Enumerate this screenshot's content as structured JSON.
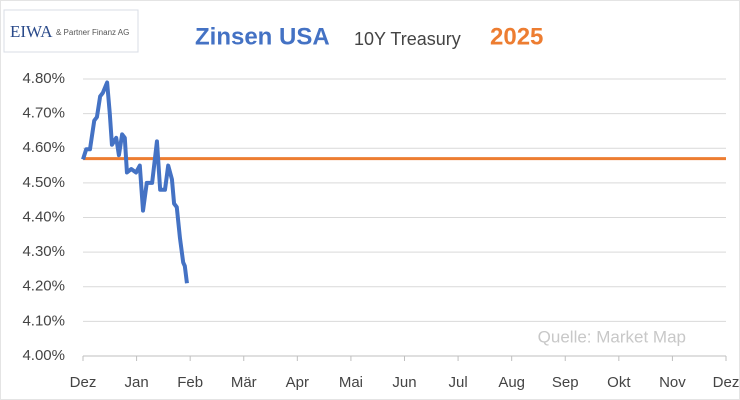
{
  "chart_data": {
    "type": "line",
    "logo": {
      "mark": "EIWA",
      "text": "& Partner Finanz AG"
    },
    "title": "Zinsen USA",
    "subtitle": "10Y Treasury",
    "year": "2025",
    "annotation": "Quelle: Market Map",
    "xlim": [
      0,
      12
    ],
    "xticks": [
      {
        "value": 0,
        "label": "Dez"
      },
      {
        "value": 1,
        "label": "Jan"
      },
      {
        "value": 2,
        "label": "Feb"
      },
      {
        "value": 3,
        "label": "Mär"
      },
      {
        "value": 4,
        "label": "Apr"
      },
      {
        "value": 5,
        "label": "Mai"
      },
      {
        "value": 6,
        "label": "Jun"
      },
      {
        "value": 7,
        "label": "Jul"
      },
      {
        "value": 8,
        "label": "Aug"
      },
      {
        "value": 9,
        "label": "Sep"
      },
      {
        "value": 10,
        "label": "Okt"
      },
      {
        "value": 11,
        "label": "Nov"
      },
      {
        "value": 12,
        "label": "Dez"
      }
    ],
    "ylim": [
      4.0,
      4.8
    ],
    "yticks": [
      {
        "value": 4.0,
        "label": "4.00%"
      },
      {
        "value": 4.1,
        "label": "4.10%"
      },
      {
        "value": 4.2,
        "label": "4.20%"
      },
      {
        "value": 4.3,
        "label": "4.30%"
      },
      {
        "value": 4.4,
        "label": "4.40%"
      },
      {
        "value": 4.5,
        "label": "4.50%"
      },
      {
        "value": 4.6,
        "label": "4.60%"
      },
      {
        "value": 4.7,
        "label": "4.70%"
      },
      {
        "value": 4.8,
        "label": "4.80%"
      }
    ],
    "grid": true,
    "series": [
      {
        "color": "#4472c4",
        "x": [
          0,
          0.06,
          0.13,
          0.21,
          0.26,
          0.32,
          0.37,
          0.45,
          0.5,
          0.54,
          0.62,
          0.67,
          0.73,
          0.78,
          0.82,
          0.9,
          0.99,
          1.06,
          1.12,
          1.19,
          1.29,
          1.38,
          1.44,
          1.53,
          1.59,
          1.66,
          1.7,
          1.75,
          1.81,
          1.87,
          1.9,
          1.94
        ],
        "values": [
          4.568,
          4.597,
          4.597,
          4.68,
          4.69,
          4.75,
          4.76,
          4.79,
          4.7,
          4.61,
          4.63,
          4.58,
          4.64,
          4.63,
          4.53,
          4.54,
          4.53,
          4.55,
          4.42,
          4.5,
          4.5,
          4.62,
          4.48,
          4.48,
          4.55,
          4.51,
          4.44,
          4.43,
          4.34,
          4.27,
          4.26,
          4.21
        ]
      },
      {
        "color": "#ed7d31",
        "x": [
          0,
          12
        ],
        "values": [
          4.57,
          4.57
        ]
      }
    ]
  }
}
